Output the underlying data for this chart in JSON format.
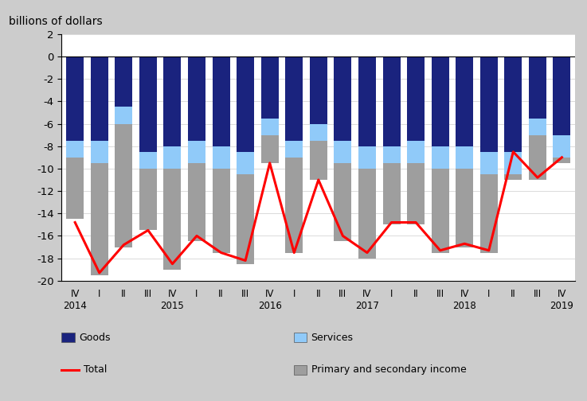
{
  "title": "billions of dollars",
  "quarter_labels_row1": [
    "IV",
    "I",
    "II",
    "III",
    "IV",
    "I",
    "II",
    "III",
    "IV",
    "I",
    "II",
    "III",
    "IV",
    "I",
    "II",
    "III",
    "IV",
    "I",
    "II",
    "III",
    "IV"
  ],
  "quarter_labels_row2": [
    "2014",
    "",
    "",
    "",
    "2015",
    "",
    "",
    "",
    "2016",
    "",
    "",
    "",
    "2017",
    "",
    "",
    "",
    "2018",
    "",
    "",
    "",
    "2019"
  ],
  "goods": [
    -7.5,
    -7.5,
    -4.5,
    -8.5,
    -8.0,
    -7.5,
    -8.0,
    -8.5,
    -5.5,
    -7.5,
    -6.0,
    -7.5,
    -8.0,
    -8.0,
    -7.5,
    -8.0,
    -8.0,
    -8.5,
    -8.5,
    -5.5,
    -7.0
  ],
  "services": [
    -1.5,
    -2.0,
    -1.5,
    -1.5,
    -2.0,
    -2.0,
    -2.0,
    -2.0,
    -1.5,
    -1.5,
    -1.5,
    -2.0,
    -2.0,
    -1.5,
    -2.0,
    -2.0,
    -2.0,
    -2.0,
    -2.0,
    -1.5,
    -2.0
  ],
  "primary": [
    -5.5,
    -10.0,
    -11.0,
    -5.5,
    -9.0,
    -7.0,
    -7.5,
    -8.0,
    -2.5,
    -8.5,
    -3.5,
    -7.0,
    -8.0,
    -5.5,
    -5.5,
    -7.5,
    -7.0,
    -7.0,
    -0.5,
    -4.0,
    -0.5
  ],
  "total": [
    -14.8,
    -19.3,
    -16.8,
    -15.5,
    -18.5,
    -16.0,
    -17.5,
    -18.2,
    -9.5,
    -17.5,
    -11.0,
    -16.0,
    -17.5,
    -14.8,
    -14.8,
    -17.3,
    -16.7,
    -17.3,
    -8.5,
    -10.8,
    -9.0
  ],
  "goods_color": "#1a237e",
  "services_color": "#90caf9",
  "primary_color": "#9e9e9e",
  "total_color": "#ff0000",
  "background_color": "#cccccc",
  "plot_bg_color": "#ffffff",
  "ylim_min": -20,
  "ylim_max": 2,
  "yticks": [
    2,
    0,
    -2,
    -4,
    -6,
    -8,
    -10,
    -12,
    -14,
    -16,
    -18,
    -20
  ]
}
